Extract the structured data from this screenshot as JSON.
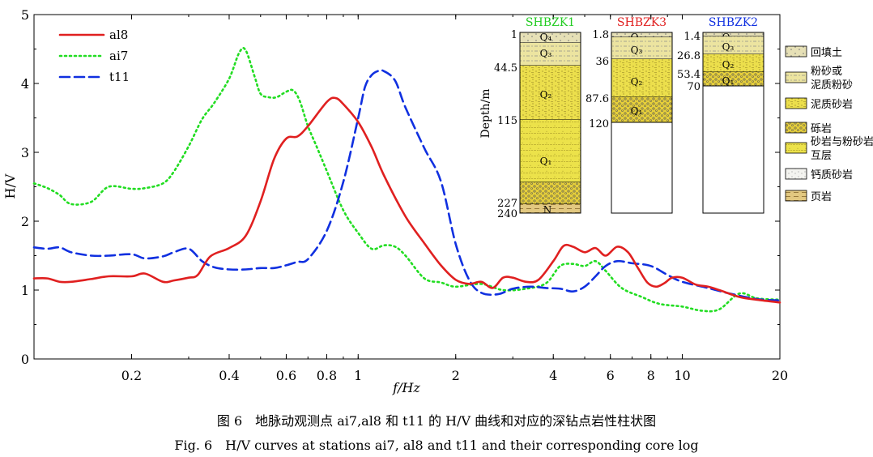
{
  "chart_data": {
    "type": "line",
    "xlabel": "f/Hz",
    "ylabel": "H/V",
    "xscale": "log",
    "xlim": [
      0.1,
      20
    ],
    "ylim": [
      0,
      5
    ],
    "grid": false,
    "legend": "top-left",
    "x_ticks": [
      0.2,
      0.4,
      0.6,
      0.8,
      1,
      2,
      4,
      6,
      8,
      10,
      20
    ],
    "x_tick_labels": [
      "0.2",
      "0.4",
      "0.6",
      "0.8",
      "1",
      "2",
      "4",
      "6",
      "8",
      "10",
      "20"
    ],
    "y_ticks": [
      0,
      1,
      2,
      3,
      4,
      5
    ],
    "y_tick_labels": [
      "0",
      "1",
      "2",
      "3",
      "4",
      "5"
    ],
    "series": [
      {
        "name": "al8",
        "color": "#e02020",
        "dash": "solid",
        "x": [
          0.1,
          0.11,
          0.12,
          0.13,
          0.15,
          0.17,
          0.2,
          0.22,
          0.25,
          0.27,
          0.3,
          0.32,
          0.35,
          0.4,
          0.45,
          0.5,
          0.55,
          0.6,
          0.65,
          0.7,
          0.8,
          0.85,
          0.9,
          1,
          1.1,
          1.2,
          1.4,
          1.6,
          1.8,
          2,
          2.2,
          2.4,
          2.6,
          2.8,
          3,
          3.3,
          3.6,
          4,
          4.3,
          4.6,
          5,
          5.4,
          5.8,
          6.3,
          6.8,
          7.3,
          7.8,
          8.3,
          8.8,
          9.3,
          10,
          11,
          12,
          13,
          15,
          17,
          20
        ],
        "y": [
          1.17,
          1.17,
          1.12,
          1.12,
          1.16,
          1.2,
          1.2,
          1.24,
          1.12,
          1.14,
          1.18,
          1.22,
          1.49,
          1.61,
          1.79,
          2.29,
          2.9,
          3.2,
          3.23,
          3.38,
          3.73,
          3.79,
          3.7,
          3.44,
          3.08,
          2.67,
          2.07,
          1.68,
          1.36,
          1.15,
          1.09,
          1.12,
          1.03,
          1.18,
          1.18,
          1.12,
          1.15,
          1.42,
          1.64,
          1.63,
          1.55,
          1.61,
          1.5,
          1.63,
          1.55,
          1.32,
          1.11,
          1.05,
          1.1,
          1.18,
          1.18,
          1.08,
          1.05,
          1.0,
          0.9,
          0.86,
          0.82
        ]
      },
      {
        "name": "ai7",
        "color": "#22dd22",
        "dash": "dotted",
        "x": [
          0.1,
          0.11,
          0.12,
          0.13,
          0.15,
          0.17,
          0.2,
          0.22,
          0.25,
          0.27,
          0.3,
          0.33,
          0.36,
          0.4,
          0.43,
          0.45,
          0.48,
          0.5,
          0.53,
          0.56,
          0.6,
          0.63,
          0.66,
          0.7,
          0.75,
          0.8,
          0.9,
          1,
          1.1,
          1.2,
          1.3,
          1.4,
          1.6,
          1.8,
          2,
          2.4,
          2.8,
          3.3,
          3.8,
          4.2,
          4.6,
          5,
          5.4,
          5.8,
          6.5,
          7.5,
          8.5,
          10,
          11.5,
          13,
          15,
          17,
          20
        ],
        "y": [
          2.55,
          2.48,
          2.38,
          2.25,
          2.28,
          2.5,
          2.47,
          2.48,
          2.55,
          2.72,
          3.09,
          3.48,
          3.72,
          4.07,
          4.45,
          4.48,
          4.09,
          3.85,
          3.8,
          3.8,
          3.88,
          3.9,
          3.75,
          3.38,
          3.05,
          2.73,
          2.16,
          1.83,
          1.6,
          1.65,
          1.63,
          1.5,
          1.17,
          1.11,
          1.05,
          1.09,
          1.0,
          1.02,
          1.1,
          1.35,
          1.38,
          1.35,
          1.42,
          1.28,
          1.03,
          0.9,
          0.8,
          0.76,
          0.7,
          0.72,
          0.95,
          0.88,
          0.86
        ]
      },
      {
        "name": "t11",
        "color": "#1030e0",
        "dash": "dashed",
        "x": [
          0.1,
          0.11,
          0.12,
          0.13,
          0.15,
          0.17,
          0.2,
          0.22,
          0.25,
          0.27,
          0.3,
          0.33,
          0.36,
          0.4,
          0.45,
          0.5,
          0.55,
          0.6,
          0.65,
          0.7,
          0.8,
          0.9,
          1,
          1.05,
          1.1,
          1.15,
          1.2,
          1.3,
          1.4,
          1.6,
          1.8,
          2,
          2.2,
          2.4,
          2.7,
          3,
          3.4,
          3.8,
          4.2,
          4.6,
          5,
          5.4,
          5.8,
          6.3,
          7,
          8,
          9,
          10,
          12,
          14,
          17,
          20
        ],
        "y": [
          1.62,
          1.6,
          1.62,
          1.55,
          1.5,
          1.5,
          1.52,
          1.46,
          1.49,
          1.55,
          1.6,
          1.42,
          1.33,
          1.3,
          1.3,
          1.32,
          1.32,
          1.36,
          1.41,
          1.45,
          1.86,
          2.57,
          3.5,
          3.95,
          4.12,
          4.18,
          4.18,
          4.04,
          3.65,
          3.06,
          2.58,
          1.67,
          1.15,
          0.96,
          0.94,
          1.02,
          1.05,
          1.03,
          1.02,
          0.98,
          1.05,
          1.2,
          1.35,
          1.42,
          1.39,
          1.35,
          1.22,
          1.12,
          1.03,
          0.95,
          0.87,
          0.85
        ]
      }
    ],
    "inset": {
      "ylabel": "Depth/m",
      "columns": [
        {
          "name": "SHBZK1",
          "title_color": "#22cc22",
          "depth_labels": [
            "1",
            "44.5",
            "115",
            "227",
            "240"
          ],
          "layers": [
            {
              "label": "Q₄",
              "lith": "回填土"
            },
            {
              "label": "Q₃",
              "lith": "粉砂或泥质粉砂"
            },
            {
              "label": "Q₂",
              "lith": "泥质砂岩"
            },
            {
              "label": "Q₁",
              "lith": "砂岩与粉砂岩互层"
            },
            {
              "label": "",
              "lith": "砾岩"
            },
            {
              "label": "N",
              "lith": "页岩"
            }
          ]
        },
        {
          "name": "SHBZK3",
          "title_color": "#e02020",
          "depth_labels": [
            "1.8",
            "36",
            "87.6",
            "120"
          ],
          "layers": [
            {
              "label": "Q₄",
              "lith": "回填土"
            },
            {
              "label": "Q₃",
              "lith": "粉砂或泥质粉砂"
            },
            {
              "label": "Q₂",
              "lith": "泥质砂岩"
            },
            {
              "label": "Q₁",
              "lith": "砾岩"
            }
          ]
        },
        {
          "name": "SHBZK2",
          "title_color": "#1030e0",
          "depth_labels": [
            "1.4",
            "26.8",
            "53.4",
            "70"
          ],
          "layers": [
            {
              "label": "Q₄",
              "lith": "回填土"
            },
            {
              "label": "Q₃",
              "lith": "粉砂或泥质粉砂"
            },
            {
              "label": "Q₂",
              "lith": "泥质砂岩"
            },
            {
              "label": "Q₁",
              "lith": "砾岩"
            }
          ]
        }
      ],
      "legend": [
        {
          "label": "回填土",
          "pattern": "fill"
        },
        {
          "label": "粉砂或泥质粉砂",
          "pattern": "silt"
        },
        {
          "label": "泥质砂岩",
          "pattern": "mudsand"
        },
        {
          "label": "砾岩",
          "pattern": "gravel"
        },
        {
          "label": "砂岩与粉砂岩互层",
          "pattern": "inter"
        },
        {
          "label": "钙质砂岩",
          "pattern": "calc"
        },
        {
          "label": "页岩",
          "pattern": "shale"
        }
      ]
    }
  },
  "caption": {
    "cn": "图 6　地脉动观测点 ai7,al8 和 t11 的 H/V 曲线和对应的深钻点岩性柱状图",
    "en": "Fig. 6　H/V curves at stations ai7, al8 and t11 and their corresponding core log"
  }
}
